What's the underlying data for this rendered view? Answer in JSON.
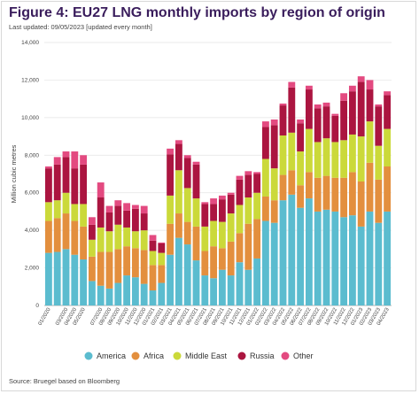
{
  "header": {
    "title": "Figure 4: EU27 LNG monthly imports by region of origin",
    "updated": "Last updated: 09/05/2023 [updated every month]"
  },
  "footer": {
    "source": "Source: Bruegel based on Bloomberg"
  },
  "colors": {
    "America": "#5bbccf",
    "Africa": "#e38f3e",
    "Middle East": "#cbd93a",
    "Russia": "#ab1540",
    "Other": "#e34a80"
  },
  "chart_data": {
    "type": "bar",
    "stacked": true,
    "ylabel": "Million cubic metres",
    "ylim": [
      0,
      14000
    ],
    "yticks": [
      0,
      2000,
      4000,
      6000,
      8000,
      10000,
      12000,
      14000
    ],
    "ytick_labels": [
      "0",
      "2,000",
      "4,000",
      "6,000",
      "8,000",
      "10,000",
      "12,000",
      "14,000"
    ],
    "grid": true,
    "legend_position": "bottom",
    "categories": [
      "01/2020",
      "02/2020",
      "03/2020",
      "04/2020",
      "05/2020",
      "06/2020",
      "07/2020",
      "08/2020",
      "09/2020",
      "10/2020",
      "11/2020",
      "12/2020",
      "01/2021",
      "02/2021",
      "03/2021",
      "04/2021",
      "05/2021",
      "06/2021",
      "07/2021",
      "08/2021",
      "09/2021",
      "10/2021",
      "11/2021",
      "12/2021",
      "01/2022",
      "02/2022",
      "03/2022",
      "04/2022",
      "05/2022",
      "06/2022",
      "07/2022",
      "08/2022",
      "09/2022",
      "10/2022",
      "11/2022",
      "12/2022",
      "01/2023",
      "02/2023",
      "03/2023",
      "04/2023"
    ],
    "x_tick_labels": [
      "01/2020",
      "",
      "03/2020",
      "04/2020",
      "05/2020",
      "",
      "07/2020",
      "08/2020",
      "09/2020",
      "10/2020",
      "11/2020",
      "12/2020",
      "01/2021",
      "02/2021",
      "03/2021",
      "04/2021",
      "05/2021",
      "06/2021",
      "07/2021",
      "08/2021",
      "09/2021",
      "10/2021",
      "11/2021",
      "12/2021",
      "01/2022",
      "02/2022",
      "03/2022",
      "04/2022",
      "05/2022",
      "06/2022",
      "07/2022",
      "08/2022",
      "09/2022",
      "10/2022",
      "11/2022",
      "12/2022",
      "01/2023",
      "02/2023",
      "03/2023",
      "04/2023"
    ],
    "series": [
      {
        "name": "America",
        "values": [
          2800,
          2850,
          3000,
          2700,
          2450,
          1300,
          1050,
          900,
          1200,
          1600,
          1500,
          1150,
          800,
          1200,
          2700,
          3600,
          3250,
          2400,
          1600,
          1450,
          1900,
          1600,
          2300,
          1900,
          2500,
          4500,
          4400,
          5600,
          5900,
          5200,
          5700,
          5000,
          5100,
          5000,
          4700,
          4800,
          4200,
          5000,
          4400,
          5000
        ]
      },
      {
        "name": "Africa",
        "values": [
          1700,
          1800,
          1900,
          1800,
          1750,
          1300,
          1800,
          1950,
          1800,
          1550,
          1550,
          1800,
          1350,
          950,
          1650,
          1300,
          1200,
          1800,
          1300,
          1700,
          1150,
          1800,
          1550,
          2450,
          2100,
          1300,
          1200,
          1350,
          1300,
          1200,
          1400,
          1800,
          1800,
          1800,
          2100,
          2300,
          2400,
          2600,
          2300,
          2400
        ]
      },
      {
        "name": "Middle East",
        "values": [
          1000,
          950,
          1100,
          900,
          1200,
          900,
          1300,
          1100,
          1300,
          1000,
          900,
          1050,
          750,
          650,
          1500,
          2300,
          1800,
          1500,
          1300,
          1350,
          1400,
          1500,
          1500,
          1400,
          1400,
          2000,
          1700,
          2100,
          2000,
          1800,
          2300,
          1900,
          2000,
          1900,
          2000,
          2000,
          2400,
          2200,
          1800,
          2000
        ]
      },
      {
        "name": "Russia",
        "values": [
          1800,
          1900,
          1900,
          1900,
          2100,
          800,
          1600,
          1000,
          1000,
          900,
          1200,
          900,
          550,
          500,
          2200,
          1400,
          1600,
          1800,
          1200,
          900,
          1200,
          1000,
          1350,
          1200,
          1000,
          1700,
          2300,
          1600,
          2400,
          1500,
          2100,
          1800,
          1700,
          1400,
          2100,
          2300,
          2900,
          1700,
          2100,
          1800
        ]
      },
      {
        "name": "Other",
        "values": [
          100,
          400,
          300,
          900,
          500,
          400,
          800,
          350,
          300,
          400,
          200,
          400,
          300,
          50,
          300,
          200,
          150,
          150,
          100,
          300,
          200,
          100,
          200,
          200,
          100,
          300,
          300,
          100,
          300,
          200,
          200,
          200,
          200,
          100,
          400,
          300,
          300,
          500,
          100,
          200
        ]
      }
    ]
  }
}
